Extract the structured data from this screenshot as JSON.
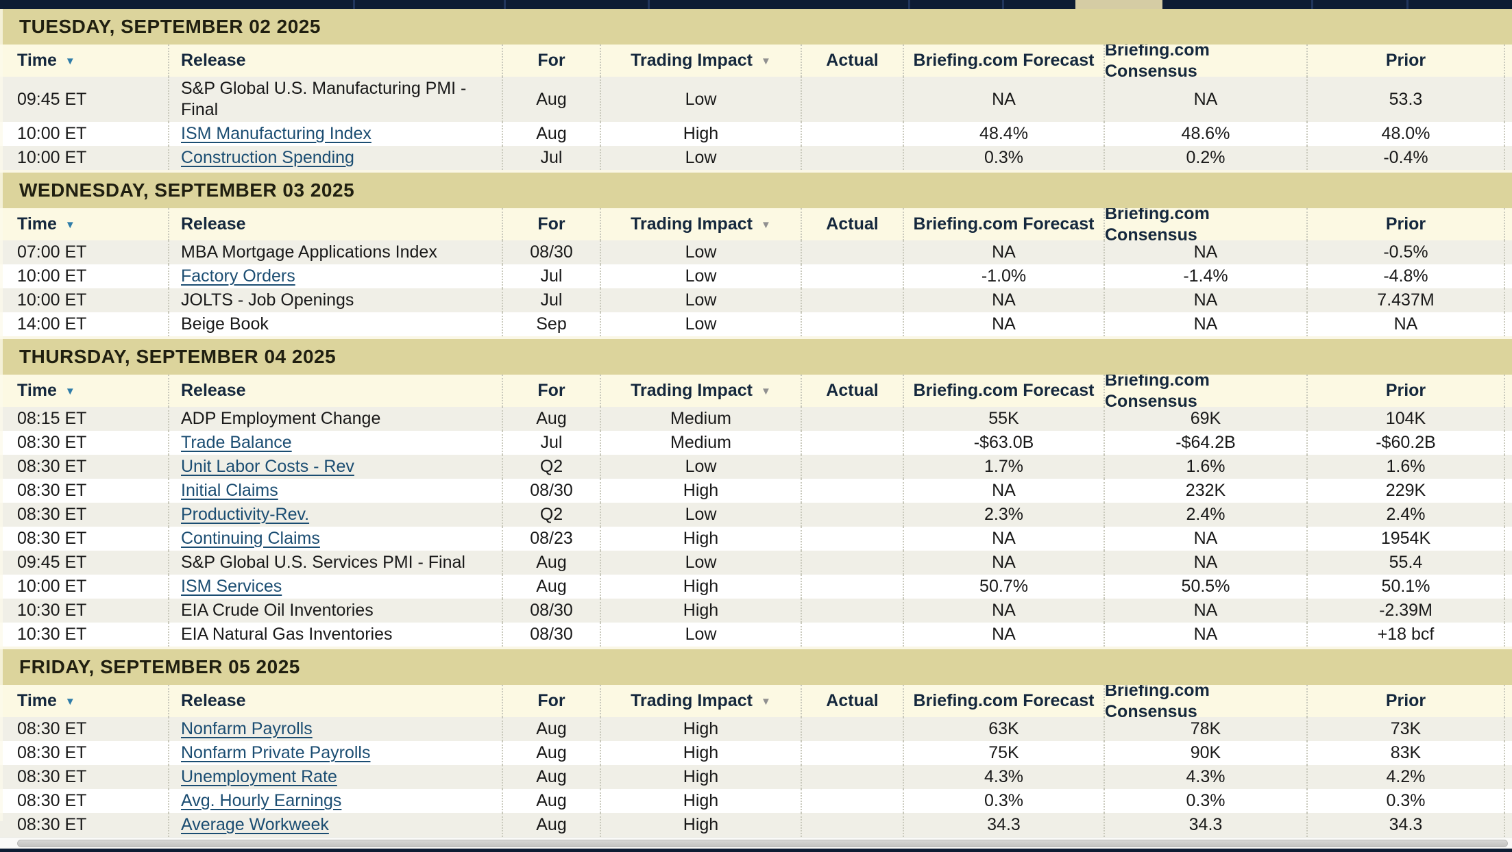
{
  "colors": {
    "topbar_bg": "#0d1c33",
    "topbar_highlight": "#d5cca4",
    "day_band_bg": "#dcd49c",
    "header_row_bg": "#fcf9e3",
    "row_alt_bg": "#f0efe7",
    "row_bg": "#ffffff",
    "link_color": "#1b4d72",
    "time_sort_arrow": "#2e7ca8",
    "impact_sort_arrow": "#909090"
  },
  "columns": [
    {
      "key": "time",
      "label": "Time",
      "sortable": true,
      "arrow": "blue"
    },
    {
      "key": "release",
      "label": "Release",
      "sortable": false
    },
    {
      "key": "for",
      "label": "For",
      "sortable": false
    },
    {
      "key": "impact",
      "label": "Trading Impact",
      "sortable": true,
      "arrow": "gray"
    },
    {
      "key": "actual",
      "label": "Actual",
      "sortable": false
    },
    {
      "key": "forecast",
      "label": "Briefing.com Forecast",
      "sortable": false
    },
    {
      "key": "consensus",
      "label": "Briefing.com Consensus",
      "sortable": false
    },
    {
      "key": "prior",
      "label": "Prior",
      "sortable": false
    }
  ],
  "sections": [
    {
      "title": "TUESDAY, SEPTEMBER 02 2025",
      "rows": [
        {
          "time": "09:45 ET",
          "release": "S&P Global U.S. Manufacturing PMI - Final",
          "link": false,
          "for": "Aug",
          "impact": "Low",
          "actual": "",
          "forecast": "NA",
          "consensus": "NA",
          "prior": "53.3"
        },
        {
          "time": "10:00 ET",
          "release": "ISM Manufacturing Index",
          "link": true,
          "for": "Aug",
          "impact": "High",
          "actual": "",
          "forecast": "48.4%",
          "consensus": "48.6%",
          "prior": "48.0%"
        },
        {
          "time": "10:00 ET",
          "release": "Construction Spending",
          "link": true,
          "for": "Jul",
          "impact": "Low",
          "actual": "",
          "forecast": "0.3%",
          "consensus": "0.2%",
          "prior": "-0.4%"
        }
      ]
    },
    {
      "title": "WEDNESDAY, SEPTEMBER 03 2025",
      "rows": [
        {
          "time": "07:00 ET",
          "release": "MBA Mortgage Applications Index",
          "link": false,
          "for": "08/30",
          "impact": "Low",
          "actual": "",
          "forecast": "NA",
          "consensus": "NA",
          "prior": "-0.5%"
        },
        {
          "time": "10:00 ET",
          "release": "Factory Orders",
          "link": true,
          "for": "Jul",
          "impact": "Low",
          "actual": "",
          "forecast": "-1.0%",
          "consensus": "-1.4%",
          "prior": "-4.8%"
        },
        {
          "time": "10:00 ET",
          "release": "JOLTS - Job Openings",
          "link": false,
          "for": "Jul",
          "impact": "Low",
          "actual": "",
          "forecast": "NA",
          "consensus": "NA",
          "prior": "7.437M"
        },
        {
          "time": "14:00 ET",
          "release": "Beige Book",
          "link": false,
          "for": "Sep",
          "impact": "Low",
          "actual": "",
          "forecast": "NA",
          "consensus": "NA",
          "prior": "NA"
        }
      ]
    },
    {
      "title": "THURSDAY, SEPTEMBER 04 2025",
      "rows": [
        {
          "time": "08:15 ET",
          "release": "ADP Employment Change",
          "link": false,
          "for": "Aug",
          "impact": "Medium",
          "actual": "",
          "forecast": "55K",
          "consensus": "69K",
          "prior": "104K"
        },
        {
          "time": "08:30 ET",
          "release": "Trade Balance",
          "link": true,
          "for": "Jul",
          "impact": "Medium",
          "actual": "",
          "forecast": "-$63.0B",
          "consensus": "-$64.2B",
          "prior": "-$60.2B"
        },
        {
          "time": "08:30 ET",
          "release": "Unit Labor Costs - Rev",
          "link": true,
          "for": "Q2",
          "impact": "Low",
          "actual": "",
          "forecast": "1.7%",
          "consensus": "1.6%",
          "prior": "1.6%"
        },
        {
          "time": "08:30 ET",
          "release": "Initial Claims",
          "link": true,
          "for": "08/30",
          "impact": "High",
          "actual": "",
          "forecast": "NA",
          "consensus": "232K",
          "prior": "229K"
        },
        {
          "time": "08:30 ET",
          "release": "Productivity-Rev.",
          "link": true,
          "for": "Q2",
          "impact": "Low",
          "actual": "",
          "forecast": "2.3%",
          "consensus": "2.4%",
          "prior": "2.4%"
        },
        {
          "time": "08:30 ET",
          "release": "Continuing Claims",
          "link": true,
          "for": "08/23",
          "impact": "High",
          "actual": "",
          "forecast": "NA",
          "consensus": "NA",
          "prior": "1954K"
        },
        {
          "time": "09:45 ET",
          "release": "S&P Global U.S. Services PMI - Final",
          "link": false,
          "for": "Aug",
          "impact": "Low",
          "actual": "",
          "forecast": "NA",
          "consensus": "NA",
          "prior": "55.4"
        },
        {
          "time": "10:00 ET",
          "release": "ISM Services",
          "link": true,
          "for": "Aug",
          "impact": "High",
          "actual": "",
          "forecast": "50.7%",
          "consensus": "50.5%",
          "prior": "50.1%"
        },
        {
          "time": "10:30 ET",
          "release": "EIA Crude Oil Inventories",
          "link": false,
          "for": "08/30",
          "impact": "High",
          "actual": "",
          "forecast": "NA",
          "consensus": "NA",
          "prior": "-2.39M"
        },
        {
          "time": "10:30 ET",
          "release": "EIA Natural Gas Inventories",
          "link": false,
          "for": "08/30",
          "impact": "Low",
          "actual": "",
          "forecast": "NA",
          "consensus": "NA",
          "prior": "+18 bcf"
        }
      ]
    },
    {
      "title": "FRIDAY, SEPTEMBER 05 2025",
      "rows": [
        {
          "time": "08:30 ET",
          "release": "Nonfarm Payrolls",
          "link": true,
          "for": "Aug",
          "impact": "High",
          "actual": "",
          "forecast": "63K",
          "consensus": "78K",
          "prior": "73K"
        },
        {
          "time": "08:30 ET",
          "release": "Nonfarm Private Payrolls",
          "link": true,
          "for": "Aug",
          "impact": "High",
          "actual": "",
          "forecast": "75K",
          "consensus": "90K",
          "prior": "83K"
        },
        {
          "time": "08:30 ET",
          "release": "Unemployment Rate",
          "link": true,
          "for": "Aug",
          "impact": "High",
          "actual": "",
          "forecast": "4.3%",
          "consensus": "4.3%",
          "prior": "4.2%"
        },
        {
          "time": "08:30 ET",
          "release": "Avg. Hourly Earnings",
          "link": true,
          "for": "Aug",
          "impact": "High",
          "actual": "",
          "forecast": "0.3%",
          "consensus": "0.3%",
          "prior": "0.3%"
        },
        {
          "time": "08:30 ET",
          "release": "Average Workweek",
          "link": true,
          "for": "Aug",
          "impact": "High",
          "actual": "",
          "forecast": "34.3",
          "consensus": "34.3",
          "prior": "34.3"
        }
      ]
    }
  ]
}
